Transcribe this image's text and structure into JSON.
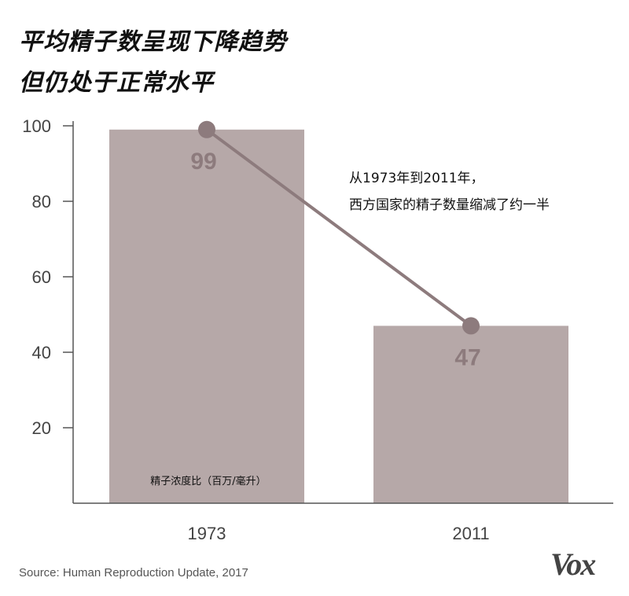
{
  "title_line1": "平均精子数呈现下降趋势",
  "title_line2": "但仍处于正常水平",
  "source": "Source: Human Reproduction Update, 2017",
  "logo": "Vox",
  "colors": {
    "bar": "#b6a8a8",
    "line": "#8d7b7d",
    "point": "#8d7b7d",
    "axis": "#555555"
  },
  "chart_data": {
    "type": "bar",
    "categories": [
      "1973",
      "2011"
    ],
    "values": [
      99,
      47
    ],
    "data_labels": [
      "99",
      "47"
    ],
    "ylabel": "精子浓度比（百万/毫升）",
    "ylim": [
      0,
      100
    ],
    "yticks": [
      20,
      40,
      60,
      80,
      100
    ],
    "overlay_line": true,
    "annotation": [
      "从1973年到2011年，",
      "西方国家的精子数量缩减了约一半"
    ],
    "grid": false
  }
}
